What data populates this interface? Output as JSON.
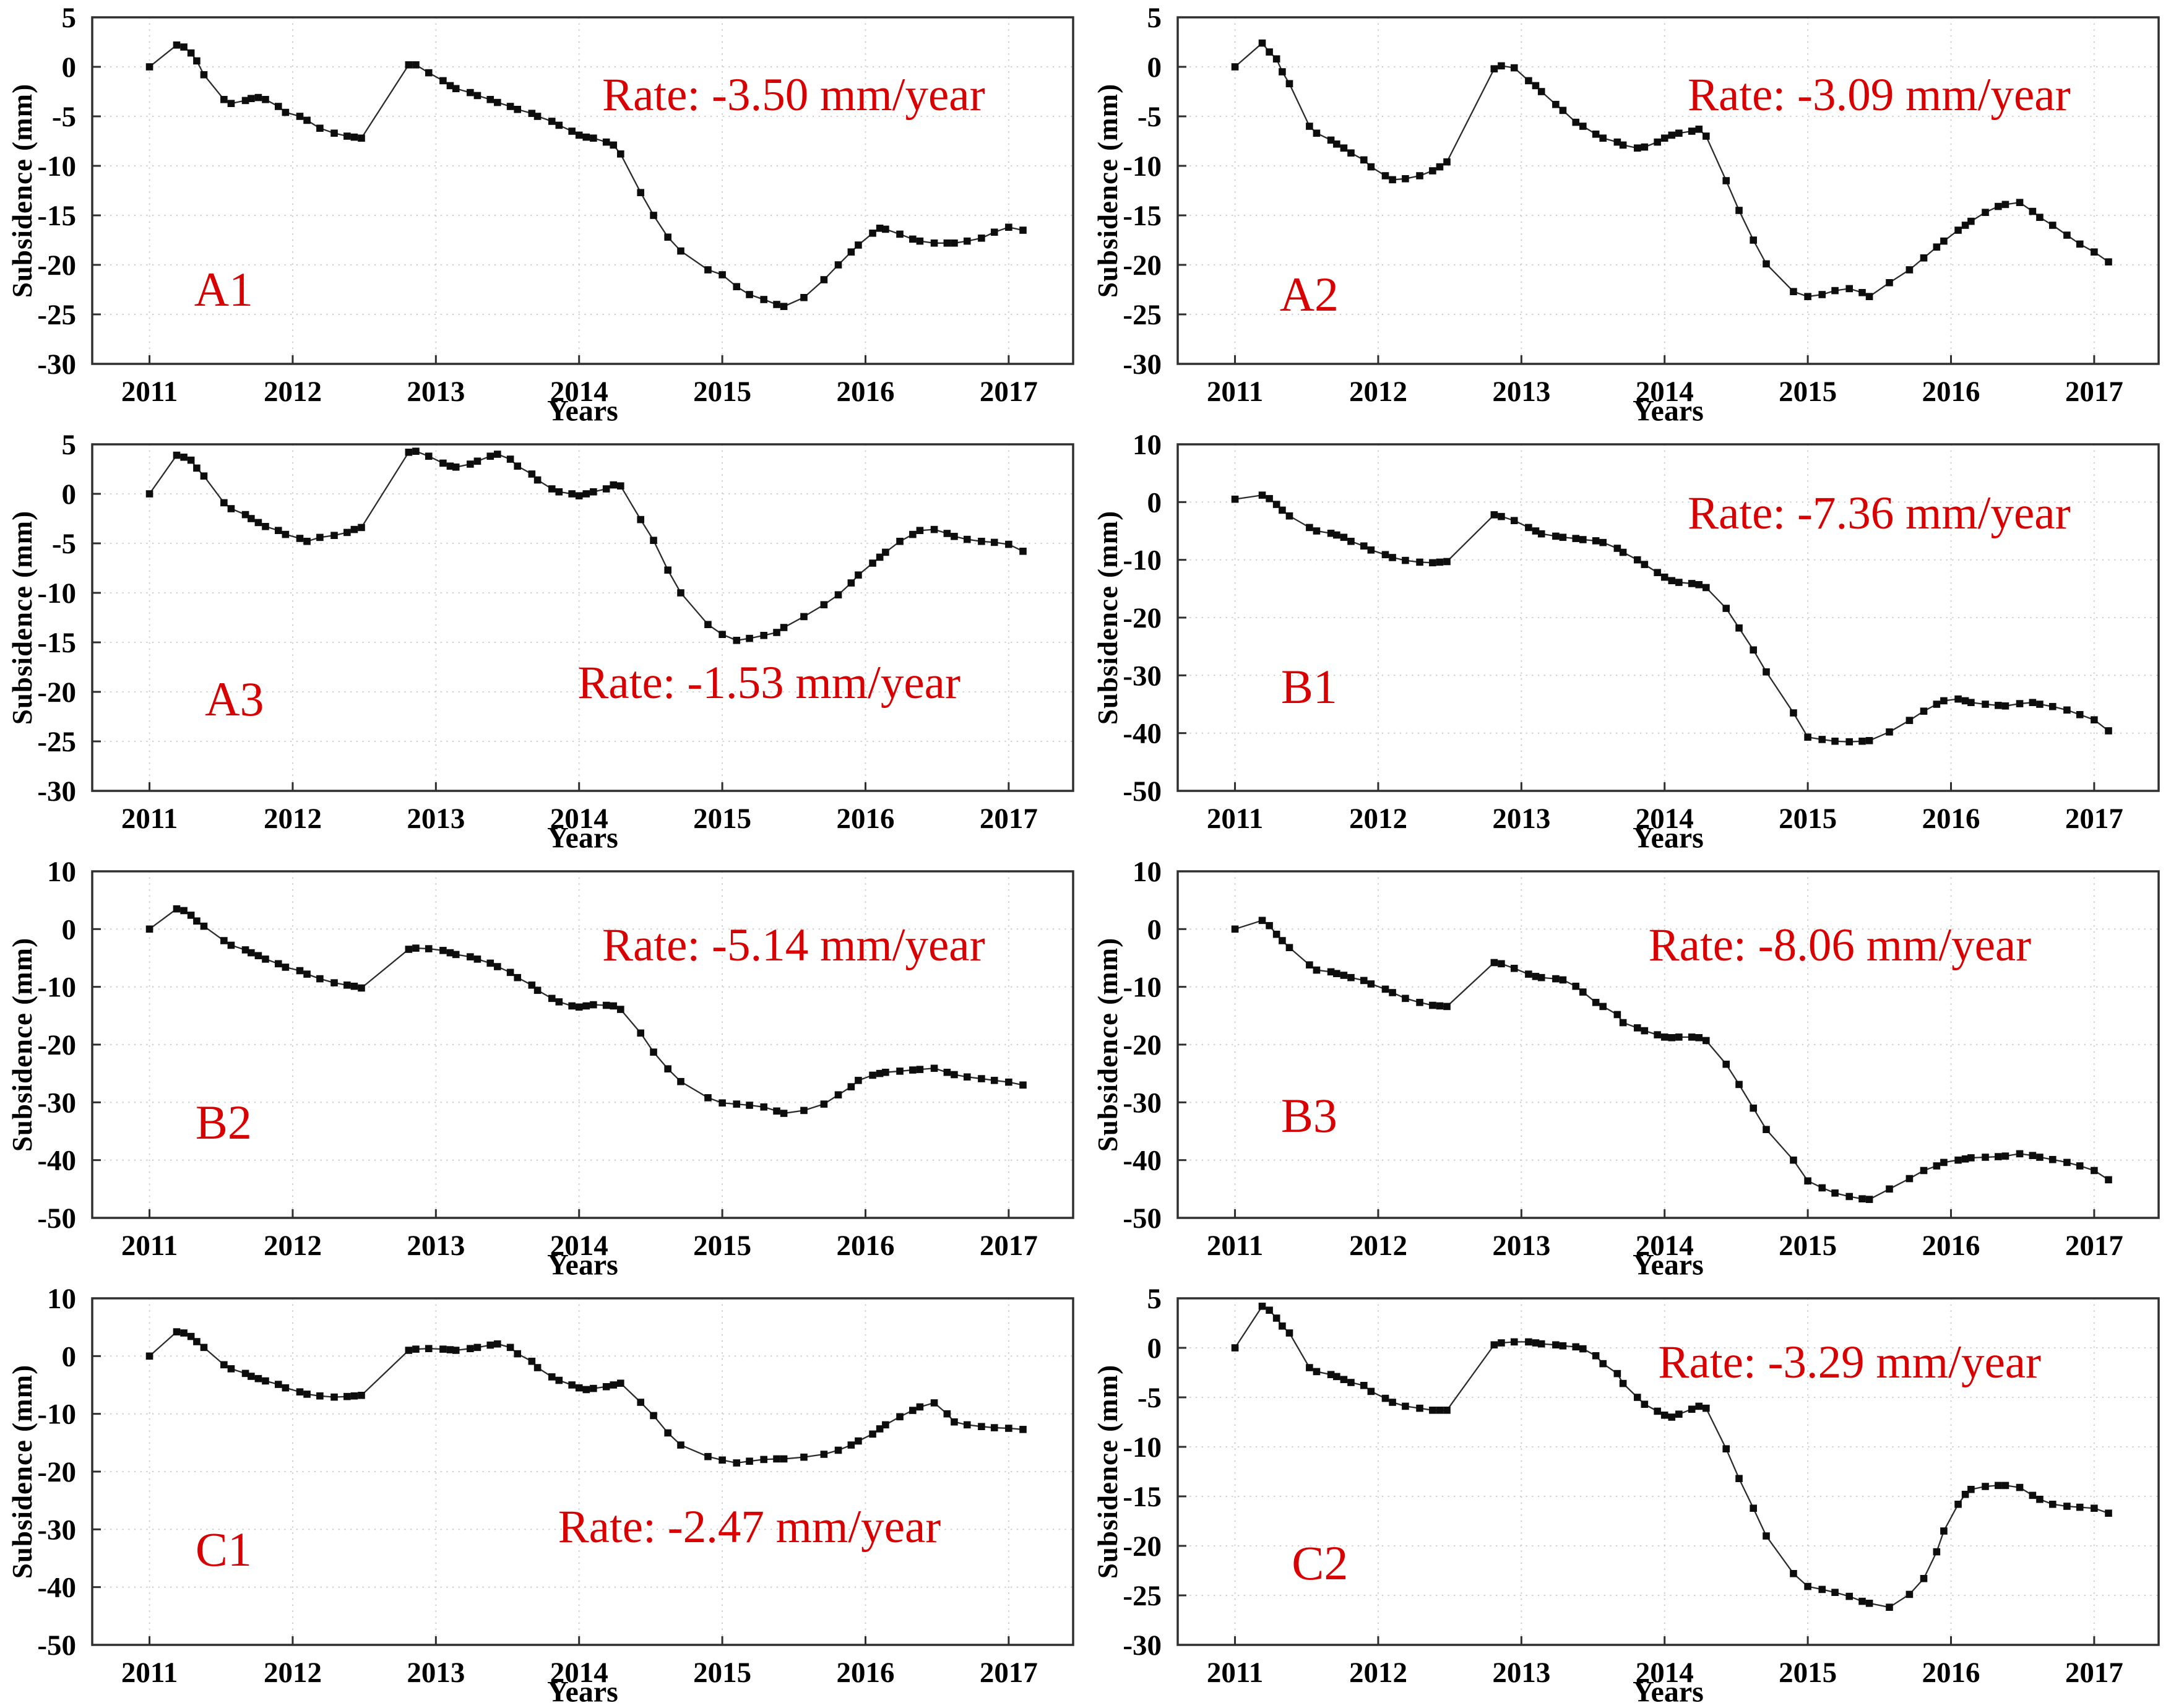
{
  "colors": {
    "annotation_red": "#d80000",
    "series_line": "#2b2b2b",
    "marker_black": "#0d0d0d",
    "grid_gray": "#c7c7c7",
    "spine_gray": "#2f2f2f",
    "tick_text": "#000000"
  },
  "xticks": [
    2011,
    2012,
    2013,
    2014,
    2015,
    2016,
    2017
  ],
  "x_years": [
    2011.0,
    2011.19,
    2011.24,
    2011.29,
    2011.33,
    2011.38,
    2011.52,
    2011.57,
    2011.67,
    2011.71,
    2011.76,
    2011.81,
    2011.9,
    2011.95,
    2012.05,
    2012.1,
    2012.19,
    2012.29,
    2012.38,
    2012.43,
    2012.48,
    2012.81,
    2012.86,
    2012.95,
    2013.05,
    2013.1,
    2013.14,
    2013.24,
    2013.29,
    2013.38,
    2013.43,
    2013.52,
    2013.57,
    2013.67,
    2013.71,
    2013.81,
    2013.86,
    2013.95,
    2014.0,
    2014.05,
    2014.1,
    2014.19,
    2014.24,
    2014.29,
    2014.43,
    2014.52,
    2014.62,
    2014.71,
    2014.9,
    2015.0,
    2015.1,
    2015.19,
    2015.29,
    2015.38,
    2015.43,
    2015.57,
    2015.71,
    2015.81,
    2015.9,
    2015.95,
    2016.05,
    2016.1,
    2016.14,
    2016.24,
    2016.33,
    2016.38,
    2016.48,
    2016.57,
    2016.62,
    2016.71,
    2016.81,
    2016.9,
    2017.0,
    2017.1
  ],
  "xlim": [
    2010.6,
    2017.45
  ],
  "chart_data": [
    {
      "type": "line",
      "station": "A1",
      "rate_label": "Rate: -3.50 mm/year",
      "xlabel": "Years",
      "ylabel": "Subsidence (mm)",
      "ylim": [
        -30,
        5
      ],
      "yticks": [
        5,
        0,
        -5,
        -10,
        -15,
        -20,
        -25,
        -30
      ],
      "station_pos": [
        0.134,
        0.785
      ],
      "rate_pos": [
        0.715,
        0.225
      ],
      "y": [
        0,
        2.2,
        2.0,
        1.4,
        0.6,
        -0.8,
        -3.3,
        -3.7,
        -3.4,
        -3.2,
        -3.1,
        -3.3,
        -4.0,
        -4.6,
        -5.0,
        -5.4,
        -6.2,
        -6.7,
        -7.0,
        -7.1,
        -7.2,
        0.2,
        0.2,
        -0.6,
        -1.4,
        -1.9,
        -2.2,
        -2.6,
        -2.9,
        -3.3,
        -3.6,
        -4.0,
        -4.3,
        -4.7,
        -5.0,
        -5.5,
        -5.9,
        -6.5,
        -6.9,
        -7.1,
        -7.2,
        -7.6,
        -7.9,
        -8.8,
        -12.7,
        -15.0,
        -17.2,
        -18.6,
        -20.5,
        -21.0,
        -22.2,
        -23.0,
        -23.5,
        -24.0,
        -24.2,
        -23.3,
        -21.5,
        -20.0,
        -18.7,
        -18.0,
        -16.8,
        -16.3,
        -16.4,
        -16.9,
        -17.4,
        -17.6,
        -17.8,
        -17.8,
        -17.8,
        -17.6,
        -17.3,
        -16.7,
        -16.2,
        -16.5
      ]
    },
    {
      "type": "line",
      "station": "A2",
      "rate_label": "Rate: -3.09 mm/year",
      "xlabel": "Years",
      "ylabel": "Subsidence (mm)",
      "ylim": [
        -30,
        5
      ],
      "yticks": [
        5,
        0,
        -5,
        -10,
        -15,
        -20,
        -25,
        -30
      ],
      "station_pos": [
        0.134,
        0.8
      ],
      "rate_pos": [
        0.715,
        0.225
      ],
      "y": [
        0,
        2.4,
        1.5,
        0.8,
        -0.5,
        -1.7,
        -6.0,
        -6.7,
        -7.4,
        -7.8,
        -8.2,
        -8.7,
        -9.4,
        -10.1,
        -11.0,
        -11.4,
        -11.3,
        -11.0,
        -10.5,
        -10.1,
        -9.6,
        -0.2,
        0.1,
        -0.1,
        -1.4,
        -1.9,
        -2.5,
        -3.8,
        -4.4,
        -5.6,
        -6.0,
        -6.8,
        -7.2,
        -7.6,
        -7.9,
        -8.2,
        -8.1,
        -7.6,
        -7.2,
        -6.9,
        -6.7,
        -6.5,
        -6.3,
        -7.0,
        -11.5,
        -14.5,
        -17.5,
        -19.9,
        -22.7,
        -23.2,
        -23.0,
        -22.6,
        -22.4,
        -22.8,
        -23.2,
        -21.8,
        -20.5,
        -19.3,
        -18.2,
        -17.6,
        -16.5,
        -16.0,
        -15.6,
        -14.7,
        -14.1,
        -13.9,
        -13.7,
        -14.6,
        -15.2,
        -16.0,
        -17.0,
        -17.9,
        -18.7,
        -19.7
      ]
    },
    {
      "type": "line",
      "station": "A3",
      "rate_label": "Rate: -1.53 mm/year",
      "xlabel": "Years",
      "ylabel": "Subsidence (mm)",
      "ylim": [
        -30,
        5
      ],
      "yticks": [
        5,
        0,
        -5,
        -10,
        -15,
        -20,
        -25,
        -30
      ],
      "station_pos": [
        0.145,
        0.735
      ],
      "rate_pos": [
        0.69,
        0.69
      ],
      "y": [
        0,
        3.9,
        3.7,
        3.4,
        2.6,
        1.8,
        -0.9,
        -1.5,
        -2.1,
        -2.5,
        -2.9,
        -3.3,
        -3.7,
        -4.1,
        -4.5,
        -4.8,
        -4.4,
        -4.2,
        -3.9,
        -3.6,
        -3.4,
        4.2,
        4.3,
        3.8,
        3.1,
        2.8,
        2.7,
        3.0,
        3.3,
        3.8,
        4.0,
        3.5,
        2.8,
        2.0,
        1.4,
        0.5,
        0.2,
        0.0,
        -0.2,
        0.0,
        0.2,
        0.5,
        0.9,
        0.8,
        -2.6,
        -4.7,
        -7.7,
        -10.0,
        -13.2,
        -14.2,
        -14.8,
        -14.6,
        -14.3,
        -14.0,
        -13.5,
        -12.4,
        -11.2,
        -10.2,
        -9.0,
        -8.2,
        -7.0,
        -6.4,
        -5.9,
        -4.8,
        -4.1,
        -3.7,
        -3.6,
        -4.0,
        -4.3,
        -4.6,
        -4.8,
        -4.9,
        -5.1,
        -5.8
      ]
    },
    {
      "type": "line",
      "station": "B1",
      "rate_label": "Rate: -7.36 mm/year",
      "xlabel": "Years",
      "ylabel": "Subsidence (mm)",
      "ylim": [
        -50,
        10
      ],
      "yticks": [
        10,
        0,
        -10,
        -20,
        -30,
        -40,
        -50
      ],
      "station_pos": [
        0.134,
        0.7
      ],
      "rate_pos": [
        0.715,
        0.2
      ],
      "y": [
        0.5,
        1.2,
        0.6,
        -0.4,
        -1.4,
        -2.4,
        -4.4,
        -5.0,
        -5.4,
        -5.7,
        -6.1,
        -6.8,
        -7.6,
        -8.3,
        -9.1,
        -9.6,
        -10.1,
        -10.4,
        -10.5,
        -10.4,
        -10.3,
        -2.2,
        -2.5,
        -3.2,
        -4.4,
        -5.0,
        -5.5,
        -5.9,
        -6.1,
        -6.3,
        -6.5,
        -6.7,
        -7.0,
        -8.0,
        -8.7,
        -10.0,
        -10.8,
        -12.2,
        -13.0,
        -13.6,
        -13.9,
        -14.1,
        -14.3,
        -14.8,
        -18.4,
        -21.8,
        -25.6,
        -29.4,
        -36.5,
        -40.7,
        -41.1,
        -41.4,
        -41.5,
        -41.4,
        -41.3,
        -39.8,
        -37.8,
        -36.2,
        -35.0,
        -34.4,
        -34.1,
        -34.4,
        -34.7,
        -35.0,
        -35.2,
        -35.3,
        -34.9,
        -34.7,
        -35.0,
        -35.4,
        -36.0,
        -36.8,
        -37.7,
        -39.6
      ]
    },
    {
      "type": "line",
      "station": "B2",
      "rate_label": "Rate: -5.14 mm/year",
      "xlabel": "Years",
      "ylabel": "Subsidence (mm)",
      "ylim": [
        -50,
        10
      ],
      "yticks": [
        10,
        0,
        -10,
        -20,
        -30,
        -40,
        -50
      ],
      "station_pos": [
        0.134,
        0.725
      ],
      "rate_pos": [
        0.715,
        0.215
      ],
      "y": [
        0,
        3.5,
        3.2,
        2.4,
        1.4,
        0.5,
        -2.0,
        -2.8,
        -3.6,
        -4.1,
        -4.6,
        -5.2,
        -6.0,
        -6.6,
        -7.2,
        -7.8,
        -8.6,
        -9.3,
        -9.7,
        -9.9,
        -10.2,
        -3.5,
        -3.3,
        -3.4,
        -3.7,
        -4.1,
        -4.4,
        -4.8,
        -5.2,
        -5.9,
        -6.5,
        -7.5,
        -8.4,
        -9.7,
        -10.6,
        -12.0,
        -12.6,
        -13.3,
        -13.5,
        -13.3,
        -13.1,
        -13.2,
        -13.3,
        -13.9,
        -18.0,
        -21.3,
        -24.2,
        -26.4,
        -29.2,
        -30.1,
        -30.3,
        -30.5,
        -30.8,
        -31.5,
        -31.9,
        -31.4,
        -30.3,
        -28.7,
        -27.3,
        -26.2,
        -25.3,
        -25.0,
        -24.8,
        -24.6,
        -24.4,
        -24.3,
        -24.1,
        -24.8,
        -25.2,
        -25.6,
        -25.9,
        -26.2,
        -26.5,
        -27.0
      ]
    },
    {
      "type": "line",
      "station": "B3",
      "rate_label": "Rate: -8.06 mm/year",
      "xlabel": "Years",
      "ylabel": "Subsidence (mm)",
      "ylim": [
        -50,
        10
      ],
      "yticks": [
        10,
        0,
        -10,
        -20,
        -30,
        -40,
        -50
      ],
      "station_pos": [
        0.134,
        0.705
      ],
      "rate_pos": [
        0.675,
        0.215
      ],
      "y": [
        0,
        1.5,
        0.6,
        -0.9,
        -2.0,
        -3.2,
        -6.2,
        -7.1,
        -7.4,
        -7.7,
        -8.0,
        -8.4,
        -8.9,
        -9.5,
        -10.4,
        -11.0,
        -12.0,
        -12.7,
        -13.2,
        -13.3,
        -13.4,
        -5.8,
        -6.0,
        -6.8,
        -7.8,
        -8.2,
        -8.4,
        -8.6,
        -8.8,
        -9.9,
        -10.9,
        -12.7,
        -13.4,
        -14.8,
        -16.2,
        -17.1,
        -17.6,
        -18.3,
        -18.7,
        -18.8,
        -18.7,
        -18.7,
        -18.8,
        -19.3,
        -23.4,
        -26.9,
        -31.0,
        -34.7,
        -40.0,
        -43.6,
        -44.8,
        -45.7,
        -46.3,
        -46.7,
        -46.8,
        -45.0,
        -43.2,
        -41.8,
        -41.0,
        -40.4,
        -40.0,
        -39.8,
        -39.6,
        -39.5,
        -39.4,
        -39.3,
        -38.9,
        -39.2,
        -39.5,
        -39.9,
        -40.4,
        -41.0,
        -41.8,
        -43.4
      ]
    },
    {
      "type": "line",
      "station": "C1",
      "rate_label": "Rate: -2.47 mm/year",
      "xlabel": "Years",
      "ylabel": "Subsidence (mm)",
      "ylim": [
        -50,
        10
      ],
      "yticks": [
        10,
        0,
        -10,
        -20,
        -30,
        -40,
        -50
      ],
      "station_pos": [
        0.134,
        0.725
      ],
      "rate_pos": [
        0.67,
        0.66
      ],
      "y": [
        0,
        4.2,
        4.0,
        3.4,
        2.5,
        1.5,
        -1.5,
        -2.2,
        -3.0,
        -3.5,
        -3.9,
        -4.3,
        -4.9,
        -5.5,
        -6.2,
        -6.6,
        -6.9,
        -7.1,
        -7.0,
        -6.9,
        -6.8,
        1.0,
        1.2,
        1.3,
        1.2,
        1.1,
        1.0,
        1.3,
        1.5,
        1.9,
        2.1,
        1.5,
        0.4,
        -0.9,
        -2.0,
        -3.6,
        -4.2,
        -5.0,
        -5.5,
        -5.8,
        -5.6,
        -5.3,
        -5.0,
        -4.7,
        -8.0,
        -10.3,
        -13.3,
        -15.4,
        -17.4,
        -18.0,
        -18.5,
        -18.2,
        -17.9,
        -17.8,
        -17.8,
        -17.5,
        -17.0,
        -16.3,
        -15.4,
        -14.7,
        -13.5,
        -12.6,
        -11.9,
        -10.5,
        -9.4,
        -8.8,
        -8.1,
        -10.0,
        -11.4,
        -11.9,
        -12.2,
        -12.4,
        -12.5,
        -12.7
      ]
    },
    {
      "type": "line",
      "station": "C2",
      "rate_label": "Rate: -3.29 mm/year",
      "xlabel": "Years",
      "ylabel": "Subsidence (mm)",
      "ylim": [
        -30,
        5
      ],
      "yticks": [
        5,
        0,
        -5,
        -10,
        -15,
        -20,
        -25,
        -30
      ],
      "station_pos": [
        0.145,
        0.765
      ],
      "rate_pos": [
        0.685,
        0.185
      ],
      "y": [
        0,
        4.2,
        3.8,
        3.0,
        2.2,
        1.5,
        -2.0,
        -2.4,
        -2.7,
        -2.9,
        -3.2,
        -3.5,
        -3.8,
        -4.4,
        -5.1,
        -5.5,
        -5.9,
        -6.1,
        -6.3,
        -6.3,
        -6.3,
        0.3,
        0.5,
        0.6,
        0.6,
        0.5,
        0.4,
        0.3,
        0.2,
        0.1,
        -0.1,
        -0.8,
        -1.6,
        -2.6,
        -3.6,
        -5.0,
        -5.7,
        -6.4,
        -6.8,
        -7.0,
        -6.7,
        -6.2,
        -5.9,
        -6.1,
        -10.2,
        -13.2,
        -16.2,
        -19.0,
        -22.8,
        -24.1,
        -24.4,
        -24.7,
        -25.1,
        -25.6,
        -25.8,
        -26.2,
        -24.9,
        -23.3,
        -20.6,
        -18.5,
        -15.8,
        -14.8,
        -14.3,
        -14.0,
        -13.9,
        -13.9,
        -14.1,
        -14.9,
        -15.3,
        -15.8,
        -16.0,
        -16.1,
        -16.2,
        -16.7
      ]
    }
  ]
}
